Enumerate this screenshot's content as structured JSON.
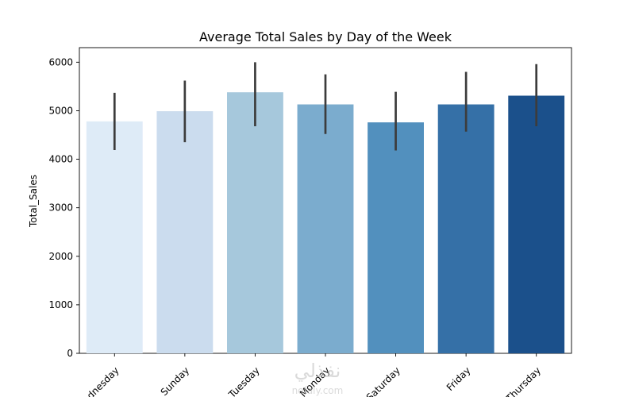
{
  "chart_data": {
    "type": "bar",
    "title": "Average Total Sales by Day of the Week",
    "xlabel": "",
    "ylabel": "Total_Sales",
    "categories": [
      "Wednesday",
      "Sunday",
      "Tuesday",
      "Monday",
      "Saturday",
      "Friday",
      "Thursday"
    ],
    "values": [
      4780,
      4990,
      5380,
      5130,
      4760,
      5130,
      5310
    ],
    "error_low": [
      4190,
      4350,
      4680,
      4520,
      4180,
      4570,
      4680
    ],
    "error_high": [
      5370,
      5620,
      6000,
      5750,
      5390,
      5800,
      5960
    ],
    "ylim": [
      0,
      6300
    ],
    "yticks": [
      0,
      1000,
      2000,
      3000,
      4000,
      5000,
      6000
    ],
    "grid": false,
    "colors": [
      "#deebf7",
      "#cbdcee",
      "#a6c8dc",
      "#7bacce",
      "#5290be",
      "#3570a7",
      "#1b508b"
    ],
    "error_color": "#3c3c3c"
  },
  "watermark": {
    "logo_text": "نفذلي",
    "url_text": "nofaly.com"
  }
}
